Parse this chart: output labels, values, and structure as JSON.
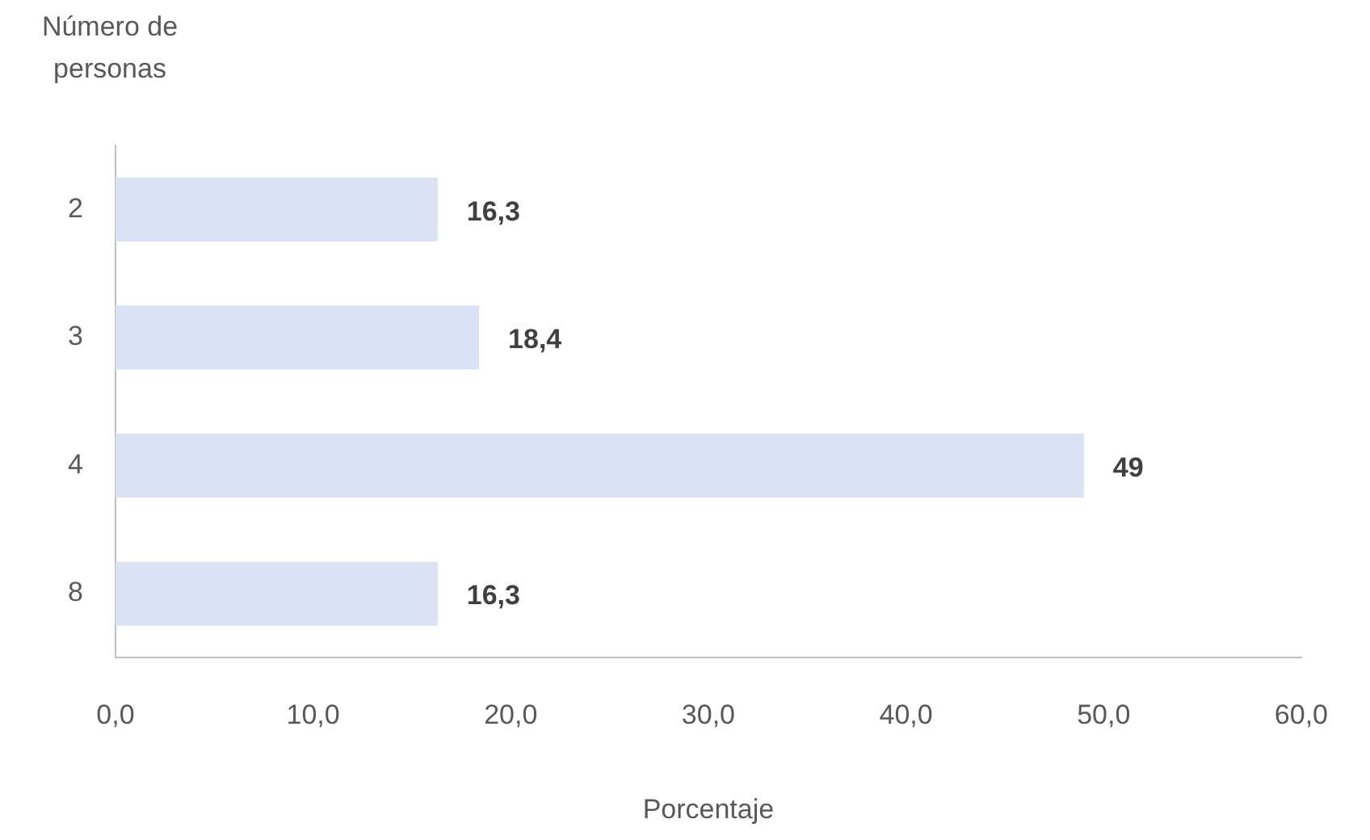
{
  "chart_data": {
    "type": "bar",
    "orientation": "horizontal",
    "xlabel": "Porcentaje",
    "ylabel": "Número de personas",
    "categories": [
      "2",
      "3",
      "4",
      "8"
    ],
    "values": [
      16.3,
      18.4,
      49,
      16.3
    ],
    "value_labels": [
      "16,3",
      "18,4",
      "49",
      "16,3"
    ],
    "color": "#dae3f3",
    "xlim": [
      0,
      60
    ],
    "xticks": [
      {
        "value": 0,
        "label": "0,0"
      },
      {
        "value": 10,
        "label": "10,0"
      },
      {
        "value": 20,
        "label": "20,0"
      },
      {
        "value": 30,
        "label": "30,0"
      },
      {
        "value": 40,
        "label": "40,0"
      },
      {
        "value": 50,
        "label": "50,0"
      },
      {
        "value": 60,
        "label": "60,0"
      }
    ],
    "grid": false,
    "legend": false
  }
}
